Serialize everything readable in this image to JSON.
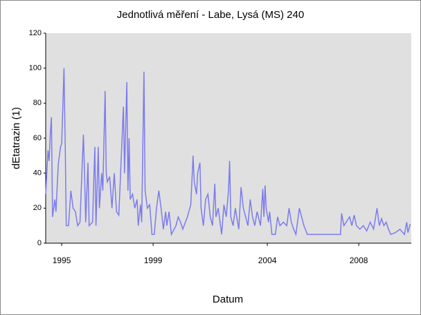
{
  "chart_data": {
    "type": "line",
    "title": "Jednotlivá měření - Labe, Lysá (MS) 240",
    "x_label": "Datum",
    "y_label": "dEtatrazin (1)",
    "xlim": [
      1994.3,
      2010.3
    ],
    "xticks": [
      1995,
      1999,
      2004,
      2008
    ],
    "ylim": [
      0,
      120
    ],
    "yticks": [
      0,
      20,
      40,
      60,
      80,
      100,
      120
    ],
    "series": [
      {
        "color": "#7b7bef",
        "x": [
          1994.3,
          1994.4,
          1994.45,
          1994.5,
          1994.55,
          1994.6,
          1994.7,
          1994.75,
          1994.85,
          1994.95,
          1995.0,
          1995.05,
          1995.1,
          1995.15,
          1995.2,
          1995.3,
          1995.4,
          1995.5,
          1995.6,
          1995.7,
          1995.8,
          1995.95,
          1996.0,
          1996.05,
          1996.15,
          1996.2,
          1996.35,
          1996.45,
          1996.5,
          1996.6,
          1996.65,
          1996.75,
          1996.8,
          1996.9,
          1996.95,
          1997.0,
          1997.1,
          1997.2,
          1997.3,
          1997.4,
          1997.5,
          1997.7,
          1997.75,
          1997.85,
          1997.9,
          1997.95,
          1998.0,
          1998.1,
          1998.2,
          1998.3,
          1998.35,
          1998.45,
          1998.5,
          1998.6,
          1998.65,
          1998.75,
          1998.85,
          1998.95,
          1999.05,
          1999.15,
          1999.25,
          1999.35,
          1999.45,
          1999.55,
          1999.6,
          1999.7,
          1999.8,
          2000.0,
          2000.1,
          2000.2,
          2000.3,
          2000.5,
          2000.65,
          2000.75,
          2000.8,
          2000.9,
          2000.95,
          2001.05,
          2001.1,
          2001.2,
          2001.3,
          2001.4,
          2001.5,
          2001.6,
          2001.7,
          2001.75,
          2001.85,
          2002.0,
          2002.1,
          2002.2,
          2002.3,
          2002.35,
          2002.4,
          2002.5,
          2002.6,
          2002.75,
          2002.85,
          2002.95,
          2003.05,
          2003.15,
          2003.25,
          2003.35,
          2003.45,
          2003.55,
          2003.7,
          2003.8,
          2003.85,
          2003.9,
          2003.95,
          2004.05,
          2004.1,
          2004.2,
          2004.35,
          2004.45,
          2004.55,
          2004.7,
          2004.85,
          2004.95,
          2005.05,
          2005.15,
          2005.25,
          2005.4,
          2005.5,
          2005.6,
          2005.75,
          2007.2,
          2007.25,
          2007.35,
          2007.45,
          2007.6,
          2007.7,
          2007.8,
          2007.9,
          2008.05,
          2008.2,
          2008.35,
          2008.5,
          2008.65,
          2008.8,
          2008.9,
          2009.0,
          2009.1,
          2009.2,
          2009.3,
          2009.4,
          2009.6,
          2009.8,
          2010.0,
          2010.1,
          2010.15,
          2010.25
        ],
        "values": [
          28,
          53,
          47,
          62,
          72,
          15,
          25,
          18,
          45,
          55,
          57,
          78,
          100,
          60,
          10,
          10,
          30,
          20,
          18,
          10,
          12,
          62,
          40,
          12,
          46,
          10,
          12,
          55,
          10,
          55,
          20,
          40,
          30,
          87,
          40,
          35,
          38,
          20,
          40,
          18,
          16,
          78,
          40,
          92,
          30,
          60,
          25,
          28,
          20,
          25,
          10,
          22,
          12,
          98,
          30,
          20,
          22,
          5,
          5,
          20,
          30,
          20,
          8,
          18,
          10,
          18,
          5,
          10,
          15,
          12,
          8,
          15,
          22,
          50,
          35,
          28,
          40,
          46,
          20,
          10,
          25,
          28,
          15,
          10,
          34,
          15,
          20,
          5,
          22,
          15,
          30,
          47,
          15,
          10,
          20,
          8,
          32,
          20,
          15,
          10,
          25,
          15,
          10,
          18,
          10,
          31,
          15,
          33,
          20,
          12,
          18,
          5,
          5,
          15,
          10,
          12,
          10,
          20,
          12,
          8,
          5,
          20,
          15,
          10,
          5,
          5,
          17,
          10,
          12,
          15,
          10,
          16,
          10,
          8,
          10,
          7,
          12,
          8,
          20,
          10,
          14,
          10,
          12,
          8,
          5,
          6,
          8,
          5,
          12,
          6,
          11
        ]
      }
    ]
  }
}
